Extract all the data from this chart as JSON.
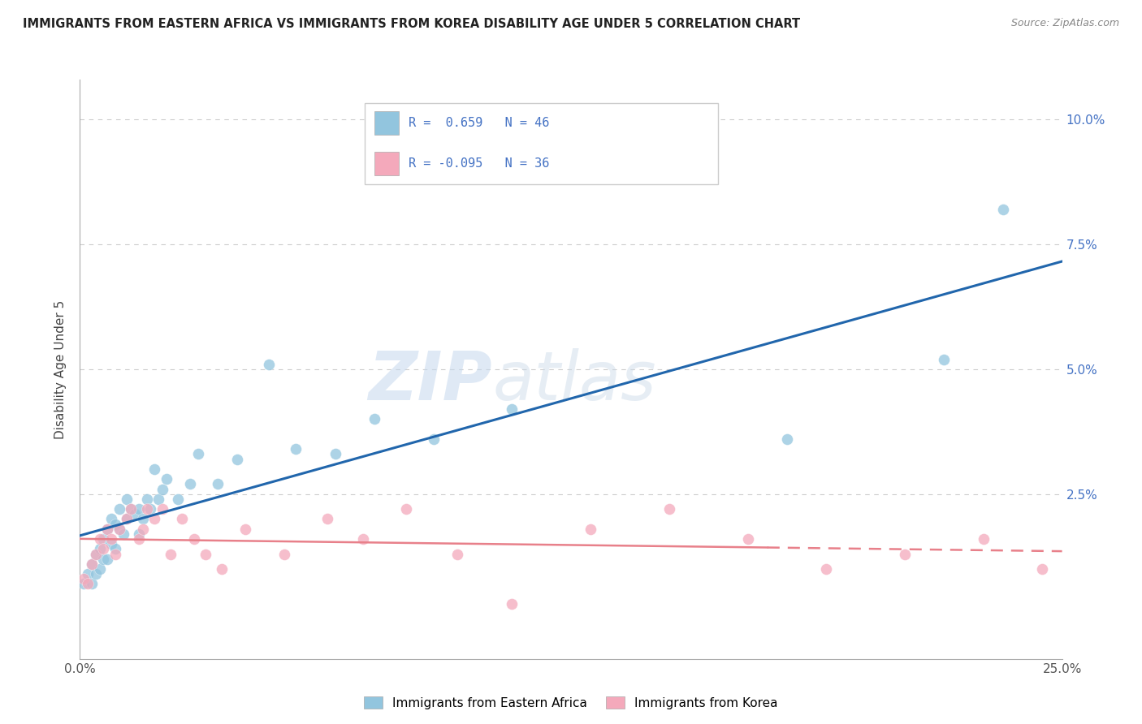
{
  "title": "IMMIGRANTS FROM EASTERN AFRICA VS IMMIGRANTS FROM KOREA DISABILITY AGE UNDER 5 CORRELATION CHART",
  "source": "Source: ZipAtlas.com",
  "ylabel": "Disability Age Under 5",
  "legend_label1": "Immigrants from Eastern Africa",
  "legend_label2": "Immigrants from Korea",
  "R1": 0.659,
  "N1": 46,
  "R2": -0.095,
  "N2": 36,
  "xlim": [
    0.0,
    0.25
  ],
  "ylim": [
    -0.008,
    0.108
  ],
  "x_ticks": [
    0.0,
    0.05,
    0.1,
    0.15,
    0.2,
    0.25
  ],
  "x_tick_labels": [
    "0.0%",
    "",
    "",
    "",
    "",
    "25.0%"
  ],
  "y_ticks": [
    0.0,
    0.025,
    0.05,
    0.075,
    0.1
  ],
  "y_tick_labels_right": [
    "",
    "2.5%",
    "5.0%",
    "7.5%",
    "10.0%"
  ],
  "color_blue": "#92C5DE",
  "color_pink": "#F4A9BB",
  "color_blue_line": "#2166AC",
  "color_pink_line": "#E8808A",
  "watermark_zip": "ZIP",
  "watermark_atlas": "atlas",
  "blue_scatter_x": [
    0.001,
    0.002,
    0.003,
    0.003,
    0.004,
    0.004,
    0.005,
    0.005,
    0.006,
    0.006,
    0.007,
    0.007,
    0.008,
    0.008,
    0.009,
    0.009,
    0.01,
    0.01,
    0.011,
    0.012,
    0.012,
    0.013,
    0.014,
    0.015,
    0.015,
    0.016,
    0.017,
    0.018,
    0.019,
    0.02,
    0.021,
    0.022,
    0.025,
    0.028,
    0.03,
    0.035,
    0.04,
    0.048,
    0.055,
    0.065,
    0.075,
    0.09,
    0.11,
    0.18,
    0.22,
    0.235
  ],
  "blue_scatter_y": [
    0.007,
    0.009,
    0.007,
    0.011,
    0.009,
    0.013,
    0.01,
    0.014,
    0.012,
    0.016,
    0.012,
    0.018,
    0.015,
    0.02,
    0.014,
    0.019,
    0.018,
    0.022,
    0.017,
    0.02,
    0.024,
    0.022,
    0.021,
    0.017,
    0.022,
    0.02,
    0.024,
    0.022,
    0.03,
    0.024,
    0.026,
    0.028,
    0.024,
    0.027,
    0.033,
    0.027,
    0.032,
    0.051,
    0.034,
    0.033,
    0.04,
    0.036,
    0.042,
    0.036,
    0.052,
    0.082
  ],
  "pink_scatter_x": [
    0.001,
    0.002,
    0.003,
    0.004,
    0.005,
    0.006,
    0.007,
    0.008,
    0.009,
    0.01,
    0.012,
    0.013,
    0.015,
    0.016,
    0.017,
    0.019,
    0.021,
    0.023,
    0.026,
    0.029,
    0.032,
    0.036,
    0.042,
    0.052,
    0.063,
    0.072,
    0.083,
    0.096,
    0.11,
    0.13,
    0.15,
    0.17,
    0.19,
    0.21,
    0.23,
    0.245
  ],
  "pink_scatter_y": [
    0.008,
    0.007,
    0.011,
    0.013,
    0.016,
    0.014,
    0.018,
    0.016,
    0.013,
    0.018,
    0.02,
    0.022,
    0.016,
    0.018,
    0.022,
    0.02,
    0.022,
    0.013,
    0.02,
    0.016,
    0.013,
    0.01,
    0.018,
    0.013,
    0.02,
    0.016,
    0.022,
    0.013,
    0.003,
    0.018,
    0.022,
    0.016,
    0.01,
    0.013,
    0.016,
    0.01
  ]
}
